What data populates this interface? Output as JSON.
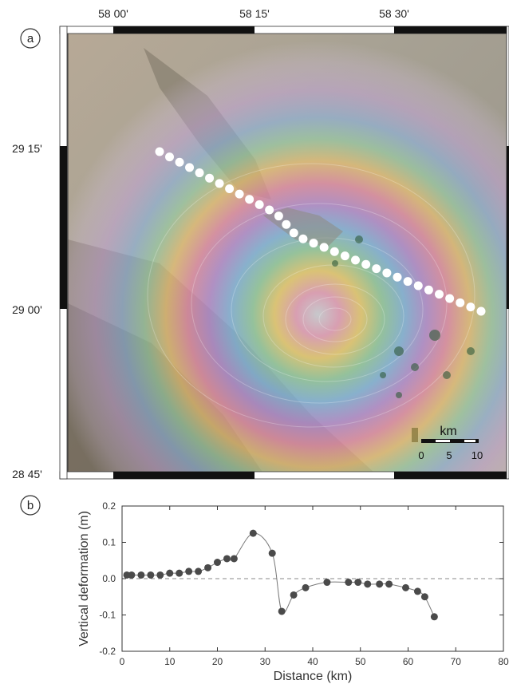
{
  "map": {
    "panel_label": "a",
    "top_labels": [
      "58 00'",
      "58 15'",
      "58 30'"
    ],
    "left_labels": [
      "29 15'",
      "29 00'",
      "28 45'"
    ],
    "scale_bar": {
      "unit": "km",
      "ticks": [
        "0",
        "5",
        "10"
      ]
    },
    "profile_points": 33
  },
  "chart": {
    "panel_label": "b"
  },
  "chart_data": {
    "type": "scatter",
    "title": "",
    "xlabel": "Distance (km)",
    "ylabel": "Vertical deformation (m)",
    "xlim": [
      0,
      80
    ],
    "ylim": [
      -0.2,
      0.2
    ],
    "x_ticks": [
      0,
      10,
      20,
      30,
      40,
      50,
      60,
      70,
      80
    ],
    "y_ticks": [
      -0.2,
      -0.1,
      0.0,
      0.1,
      0.2
    ],
    "y_tick_labels": [
      "-0.2",
      "-0.1",
      "0.0",
      "0.1",
      "0.2"
    ],
    "reference_line": 0,
    "grid": false,
    "x": [
      1,
      2,
      4,
      6,
      8,
      10,
      12,
      14,
      16,
      18,
      20,
      22,
      23.5,
      27.5,
      31.5,
      33.5,
      36,
      38.5,
      43,
      47.5,
      49.5,
      51.5,
      54,
      56,
      59.5,
      62,
      63.5,
      65.5
    ],
    "y": [
      0.01,
      0.01,
      0.01,
      0.01,
      0.01,
      0.015,
      0.015,
      0.02,
      0.02,
      0.03,
      0.045,
      0.055,
      0.055,
      0.125,
      0.07,
      -0.09,
      -0.045,
      -0.025,
      -0.01,
      -0.01,
      -0.01,
      -0.015,
      -0.015,
      -0.015,
      -0.025,
      -0.035,
      -0.05,
      -0.105
    ]
  }
}
